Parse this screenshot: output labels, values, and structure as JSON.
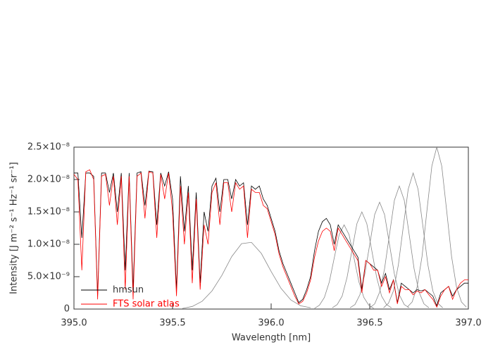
{
  "chart_data": {
    "type": "line",
    "xlabel": "Wavelength [nm]",
    "ylabel": "Intensity [J m⁻² s⁻¹ Hz⁻¹ sr⁻¹]",
    "xlim": [
      395.0,
      397.0
    ],
    "ylim": [
      0,
      2.5e-08
    ],
    "xticks": [
      {
        "value": 395.0,
        "label": "395.0"
      },
      {
        "value": 395.5,
        "label": "395.5"
      },
      {
        "value": 396.0,
        "label": "396.0"
      },
      {
        "value": 396.5,
        "label": "396.5"
      },
      {
        "value": 397.0,
        "label": "397.0"
      }
    ],
    "yticks": [
      0,
      {
        "value": 5e-09,
        "label": "5.0×10⁻⁹"
      },
      {
        "value": 1e-08,
        "label": "1.0×10⁻⁸"
      },
      {
        "value": 1.5e-08,
        "label": "1.5×10⁻⁸"
      },
      {
        "value": 2e-08,
        "label": "2.0×10⁻⁸"
      },
      {
        "value": 2.5e-08,
        "label": "2.5×10⁻⁸"
      }
    ],
    "legend": "lower left",
    "x": [
      395,
      395.02,
      395.04,
      395.06,
      395.08,
      395.1,
      395.12,
      395.14,
      395.16,
      395.18,
      395.2,
      395.22,
      395.24,
      395.26,
      395.28,
      395.3,
      395.32,
      395.34,
      395.36,
      395.38,
      395.4,
      395.42,
      395.44,
      395.46,
      395.48,
      395.5,
      395.52,
      395.54,
      395.56,
      395.58,
      395.6,
      395.62,
      395.64,
      395.66,
      395.68,
      395.7,
      395.72,
      395.74,
      395.76,
      395.78,
      395.8,
      395.82,
      395.84,
      395.86,
      395.88,
      395.9,
      395.92,
      395.94,
      395.96,
      395.98,
      396,
      396.02,
      396.04,
      396.06,
      396.08,
      396.1,
      396.12,
      396.14,
      396.16,
      396.18,
      396.2,
      396.22,
      396.24,
      396.26,
      396.28,
      396.3,
      396.32,
      396.34,
      396.36,
      396.38,
      396.4,
      396.42,
      396.44,
      396.46,
      396.48,
      396.5,
      396.52,
      396.54,
      396.56,
      396.58,
      396.6,
      396.62,
      396.64,
      396.66,
      396.68,
      396.7,
      396.72,
      396.74,
      396.76,
      396.78,
      396.8,
      396.82,
      396.84,
      396.86,
      396.88,
      396.9,
      396.92,
      396.94,
      396.96,
      396.98,
      397
    ],
    "series": [
      {
        "color": "#888888",
        "x": [
          395.55,
          395.6,
          395.65,
          395.7,
          395.75,
          395.8,
          395.85,
          395.9,
          395.95,
          396,
          396.05,
          396.1,
          396.15,
          396.2
        ],
        "values": [
          1e-10,
          4e-10,
          1.2e-09,
          2.8e-09,
          5.2e-09,
          8.1e-09,
          1.01e-08,
          1.03e-08,
          8.6e-09,
          5.8e-09,
          3.2e-09,
          1.4e-09,
          5e-10,
          2e-10
        ]
      },
      {
        "color": "#888888",
        "x": [
          396.22,
          396.245,
          396.27,
          396.295,
          396.32,
          396.345,
          396.37,
          396.395,
          396.42,
          396.445,
          396.47,
          396.495,
          396.52
        ],
        "values": [
          1e-10,
          6e-10,
          1.8e-09,
          4.2e-09,
          7.9e-09,
          1.15e-08,
          1.3e-08,
          1.15e-08,
          7.9e-09,
          4.2e-09,
          1.8e-09,
          6e-10,
          1e-10
        ]
      },
      {
        "color": "#888888",
        "x": [
          396.31,
          396.335,
          396.36,
          396.385,
          396.41,
          396.435,
          396.46,
          396.485,
          396.51,
          396.535,
          396.56,
          396.585,
          396.61
        ],
        "values": [
          2e-10,
          7e-10,
          2e-09,
          4.9e-09,
          9.1e-09,
          1.32e-08,
          1.5e-08,
          1.32e-08,
          9.1e-09,
          4.9e-09,
          2e-09,
          7e-10,
          2e-10
        ]
      },
      {
        "color": "#888888",
        "x": [
          396.4,
          396.425,
          396.45,
          396.475,
          396.5,
          396.525,
          396.55,
          396.575,
          396.6,
          396.625,
          396.65,
          396.675,
          396.7
        ],
        "values": [
          2e-10,
          7e-10,
          2.2e-09,
          5.4e-09,
          1e-08,
          1.46e-08,
          1.65e-08,
          1.46e-08,
          1e-08,
          5.4e-09,
          2.2e-09,
          7e-10,
          2e-10
        ]
      },
      {
        "color": "#888888",
        "x": [
          396.5,
          396.525,
          396.55,
          396.575,
          396.6,
          396.625,
          396.65,
          396.675,
          396.7,
          396.725,
          396.75,
          396.775,
          396.8
        ],
        "values": [
          2e-10,
          8e-10,
          2.6e-09,
          6.2e-09,
          1.15e-08,
          1.68e-08,
          1.9e-08,
          1.68e-08,
          1.15e-08,
          6.2e-09,
          2.6e-09,
          8e-10,
          2e-10
        ]
      },
      {
        "color": "#888888",
        "x": [
          396.57,
          396.595,
          396.62,
          396.645,
          396.67,
          396.695,
          396.72,
          396.745,
          396.77,
          396.795,
          396.82,
          396.845,
          396.87
        ],
        "values": [
          2e-10,
          9e-10,
          2.8e-09,
          6.8e-09,
          1.27e-08,
          1.85e-08,
          2.1e-08,
          1.85e-08,
          1.27e-08,
          6.8e-09,
          2.8e-09,
          9e-10,
          2e-10
        ]
      },
      {
        "color": "#888888",
        "x": [
          396.69,
          396.715,
          396.74,
          396.765,
          396.79,
          396.815,
          396.84,
          396.865,
          396.89,
          396.915,
          396.94,
          396.965,
          396.99
        ],
        "values": [
          3e-10,
          1.1e-09,
          3.4e-09,
          8.1e-09,
          1.52e-08,
          2.21e-08,
          2.5e-08,
          2.21e-08,
          1.52e-08,
          8.1e-09,
          3.4e-09,
          1.1e-09,
          3e-10
        ]
      },
      {
        "name": "hmsun",
        "color": "#000000",
        "values": [
          2.1e-08,
          2.1e-08,
          1.1e-08,
          2.1e-08,
          2.1e-08,
          2.05e-08,
          2e-09,
          2.1e-08,
          2.1e-08,
          1.8e-08,
          2.1e-08,
          1.5e-08,
          2.1e-08,
          6e-09,
          2.1e-08,
          3e-09,
          2.1e-08,
          2.12e-08,
          1.6e-08,
          2.13e-08,
          2.12e-08,
          1.3e-08,
          2.1e-08,
          1.9e-08,
          2.12e-08,
          1.7e-08,
          3e-09,
          2.05e-08,
          1.2e-08,
          1.9e-08,
          6e-09,
          1.8e-08,
          4e-09,
          1.5e-08,
          1.2e-08,
          1.9e-08,
          2.02e-08,
          1.5e-08,
          2e-08,
          2e-08,
          1.7e-08,
          2e-08,
          1.9e-08,
          1.95e-08,
          1.3e-08,
          1.9e-08,
          1.85e-08,
          1.9e-08,
          1.7e-08,
          1.6e-08,
          1.4e-08,
          1.2e-08,
          9e-09,
          7e-09,
          5.5e-09,
          4e-09,
          2.5e-09,
          1e-09,
          1.5e-09,
          3e-09,
          5e-09,
          9e-09,
          1.2e-08,
          1.35e-08,
          1.4e-08,
          1.3e-08,
          1e-08,
          1.3e-08,
          1.2e-08,
          1.1e-08,
          1e-08,
          9e-09,
          8e-09,
          3e-09,
          7.5e-09,
          7e-09,
          6.5e-09,
          6e-09,
          4e-09,
          5.5e-09,
          3e-09,
          4.5e-09,
          1e-09,
          4e-09,
          3.5e-09,
          3e-09,
          2.5e-09,
          3e-09,
          2.8e-09,
          3e-09,
          2.5e-09,
          2e-09,
          5e-10,
          2.5e-09,
          3e-09,
          3.5e-09,
          2e-09,
          3e-09,
          3.5e-09,
          4e-09,
          4e-09
        ]
      },
      {
        "name": "FTS solar atlas",
        "color": "#ff0000",
        "values": [
          2.08e-08,
          2e-08,
          6e-09,
          2.12e-08,
          2.15e-08,
          2e-08,
          1.5e-09,
          2.05e-08,
          2.08e-08,
          1.6e-08,
          2.05e-08,
          1.3e-08,
          2.05e-08,
          3e-09,
          2.05e-08,
          1.5e-09,
          2.05e-08,
          2.1e-08,
          1.4e-08,
          2.12e-08,
          2.1e-08,
          1.1e-08,
          2.08e-08,
          1.7e-08,
          2.1e-08,
          1.5e-08,
          2e-09,
          1.9e-08,
          1e-08,
          1.8e-08,
          4e-09,
          1.7e-08,
          3e-09,
          1.3e-08,
          1e-08,
          1.8e-08,
          1.95e-08,
          1.3e-08,
          1.95e-08,
          1.95e-08,
          1.5e-08,
          1.95e-08,
          1.85e-08,
          1.9e-08,
          1.1e-08,
          1.85e-08,
          1.8e-08,
          1.8e-08,
          1.6e-08,
          1.55e-08,
          1.35e-08,
          1.15e-08,
          8.5e-09,
          6.5e-09,
          5e-09,
          3.5e-09,
          2e-09,
          8e-10,
          1.2e-09,
          2.5e-09,
          4.5e-09,
          8e-09,
          1.05e-08,
          1.2e-08,
          1.25e-08,
          1.2e-08,
          9e-09,
          1.25e-08,
          1.15e-08,
          1.05e-08,
          9.5e-09,
          8.5e-09,
          7.5e-09,
          2.5e-09,
          7.5e-09,
          7e-09,
          6e-09,
          6e-09,
          3.5e-09,
          5e-09,
          2.5e-09,
          4.5e-09,
          8e-10,
          3.5e-09,
          3e-09,
          3e-09,
          2.2e-09,
          2.8e-09,
          2.5e-09,
          3e-09,
          2.2e-09,
          1.5e-09,
          3e-10,
          2e-09,
          3e-09,
          3.5e-09,
          1.5e-09,
          3e-09,
          4e-09,
          4.5e-09,
          4.5e-09
        ]
      }
    ]
  }
}
